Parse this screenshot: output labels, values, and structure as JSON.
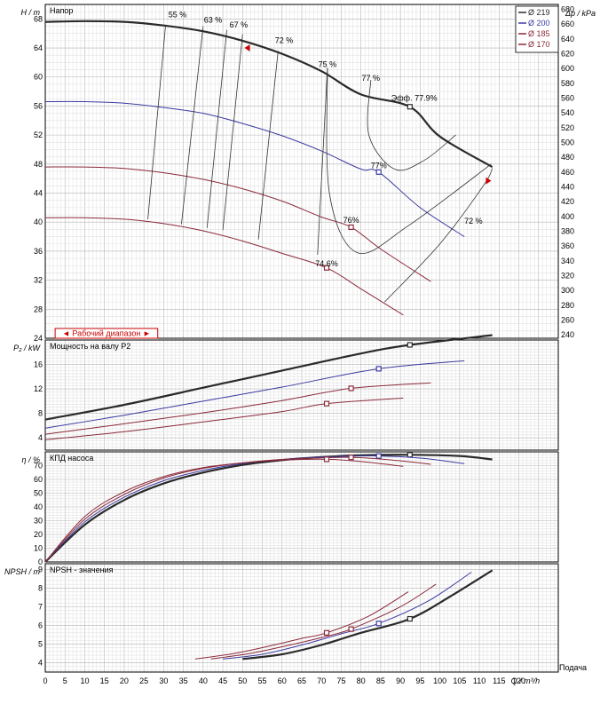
{
  "chart_data": [
    {
      "type": "line",
      "panel": "head",
      "title": "Напор",
      "ylabel": "H / m",
      "ylabel_right": "Δp / kPa",
      "xlim": [
        0,
        130
      ],
      "ylim": [
        24,
        70
      ],
      "yticks": [
        24,
        28,
        32,
        36,
        40,
        44,
        48,
        52,
        56,
        60,
        64,
        68
      ],
      "yticks_right": [
        240,
        260,
        280,
        300,
        320,
        340,
        360,
        380,
        400,
        420,
        440,
        460,
        480,
        500,
        520,
        540,
        560,
        580,
        600,
        620,
        640,
        660,
        680
      ],
      "legend_position": "top-right",
      "series": [
        {
          "name": "Ø 219",
          "color": "#2a2a2a",
          "width": 2.2,
          "x": [
            0,
            10,
            20,
            30,
            40,
            50,
            60,
            70,
            80,
            92.4,
            100,
            113.3
          ],
          "y": [
            67.6,
            67.7,
            67.6,
            67.1,
            66.3,
            65.0,
            63.2,
            60.8,
            57.6,
            55.9,
            51.8,
            47.6
          ]
        },
        {
          "name": "Ø 200",
          "color": "#3a3aa0",
          "width": 1,
          "x": [
            0,
            10,
            20,
            30,
            40,
            50,
            60,
            70,
            80,
            84.5,
            95,
            106.2
          ],
          "y": [
            56.6,
            56.6,
            56.4,
            55.8,
            55.0,
            53.6,
            51.9,
            49.8,
            47.3,
            46.9,
            42.0,
            38.0
          ]
        },
        {
          "name": "Ø 185",
          "color": "#8a2a3a",
          "width": 1,
          "x": [
            0,
            10,
            20,
            30,
            40,
            50,
            60,
            70,
            77.5,
            85,
            97.7
          ],
          "y": [
            47.6,
            47.6,
            47.4,
            46.8,
            45.9,
            44.6,
            42.9,
            40.7,
            39.3,
            36.3,
            31.8
          ]
        },
        {
          "name": "Ø 170",
          "color": "#8a2a3a",
          "width": 1,
          "x": [
            0,
            10,
            20,
            30,
            40,
            50,
            60,
            71.3,
            80,
            90.7
          ],
          "y": [
            40.6,
            40.6,
            40.4,
            39.8,
            38.8,
            37.4,
            35.7,
            33.7,
            30.8,
            27.2
          ]
        }
      ],
      "efficiency_labels": [
        {
          "text": "55 %",
          "x": 33.5,
          "y": 68.2
        },
        {
          "text": "63 %",
          "x": 42.5,
          "y": 67.5
        },
        {
          "text": "67 %",
          "x": 49.0,
          "y": 66.8
        },
        {
          "text": "72 %",
          "x": 60.5,
          "y": 64.7
        },
        {
          "text": "75 %",
          "x": 71.5,
          "y": 61.4
        },
        {
          "text": "77 %",
          "x": 82.5,
          "y": 59.5
        },
        {
          "text": "Эфф.  77.9%",
          "x": 93.5,
          "y": 56.7
        },
        {
          "text": "77%",
          "x": 84.5,
          "y": 47.4
        },
        {
          "text": "76%",
          "x": 77.5,
          "y": 39.9
        },
        {
          "text": "74.6%",
          "x": 71.3,
          "y": 33.9
        },
        {
          "text": "72 %",
          "x": 108.5,
          "y": 39.8
        }
      ],
      "operating_range_label": "◄ Рабочий диапазон ►",
      "operating_range": [
        2.5,
        28.5
      ]
    },
    {
      "type": "line",
      "panel": "power",
      "title": "Мощность на валу P2",
      "ylabel": "P₂ / kW",
      "xlim": [
        0,
        130
      ],
      "ylim": [
        2,
        20
      ],
      "yticks": [
        4,
        8,
        12,
        16
      ],
      "series": [
        {
          "name": "Ø 219",
          "color": "#2a2a2a",
          "width": 2.2,
          "x": [
            0,
            20,
            40,
            60,
            80,
            92.4,
            113.3
          ],
          "y": [
            7.0,
            9.4,
            12.2,
            15.0,
            17.8,
            19.2,
            20.8
          ]
        },
        {
          "name": "Ø 200",
          "color": "#3a3aa0",
          "width": 1,
          "x": [
            0,
            20,
            40,
            60,
            84.5,
            106.2
          ],
          "y": [
            5.6,
            7.7,
            10.0,
            12.3,
            15.3,
            16.6
          ]
        },
        {
          "name": "Ø 185",
          "color": "#8a2a3a",
          "width": 1,
          "x": [
            0,
            20,
            40,
            60,
            77.5,
            97.7
          ],
          "y": [
            4.6,
            6.3,
            8.1,
            10.1,
            12.1,
            13.0
          ]
        },
        {
          "name": "Ø 170",
          "color": "#8a2a3a",
          "width": 1,
          "x": [
            0,
            20,
            40,
            60,
            71.3,
            90.7
          ],
          "y": [
            3.7,
            5.0,
            6.6,
            8.3,
            9.6,
            10.5
          ]
        }
      ]
    },
    {
      "type": "line",
      "panel": "efficiency",
      "title": "КПД насоса",
      "ylabel": "η / %",
      "xlim": [
        0,
        130
      ],
      "ylim": [
        0,
        80
      ],
      "yticks": [
        0,
        10,
        20,
        30,
        40,
        50,
        60,
        70
      ],
      "series": [
        {
          "name": "Ø 219",
          "color": "#2a2a2a",
          "width": 2.2,
          "x": [
            0,
            10,
            20,
            30,
            40,
            50,
            60,
            70,
            80,
            92.4,
            105,
            113.3
          ],
          "y": [
            0,
            27,
            45,
            57,
            65,
            70.5,
            74,
            76.2,
            77.5,
            77.9,
            77.0,
            74.5
          ]
        },
        {
          "name": "Ø 200",
          "color": "#3a3aa0",
          "width": 1,
          "x": [
            0,
            10,
            20,
            30,
            40,
            50,
            60,
            70,
            84.5,
            95,
            106.2
          ],
          "y": [
            0,
            29,
            47,
            59,
            66.5,
            71.5,
            74.5,
            76.3,
            77,
            75.5,
            71.5
          ]
        },
        {
          "name": "Ø 185",
          "color": "#8a2a3a",
          "width": 1,
          "x": [
            0,
            10,
            20,
            30,
            40,
            50,
            60,
            77.5,
            90,
            97.7
          ],
          "y": [
            0,
            31,
            49,
            61,
            68,
            72,
            74.5,
            76,
            73.5,
            71
          ]
        },
        {
          "name": "Ø 170",
          "color": "#8a2a3a",
          "width": 1,
          "x": [
            0,
            10,
            20,
            30,
            40,
            50,
            60,
            71.3,
            80,
            90.7
          ],
          "y": [
            0,
            33,
            51,
            62,
            68.5,
            72,
            74,
            74.6,
            73,
            69.5
          ]
        }
      ]
    },
    {
      "type": "line",
      "panel": "npsh",
      "title": "NPSH - значения",
      "ylabel": "NPSH / m",
      "xlabel": "Q / m³/h",
      "xlabel_left": "Подача",
      "xlim": [
        0,
        130
      ],
      "ylim": [
        3.5,
        9.3
      ],
      "yticks": [
        4,
        5,
        6,
        7,
        8,
        9
      ],
      "xticks": [
        0,
        5,
        10,
        15,
        20,
        25,
        30,
        35,
        40,
        45,
        50,
        55,
        60,
        65,
        70,
        75,
        80,
        85,
        90,
        95,
        100,
        105,
        110,
        115,
        120
      ],
      "series": [
        {
          "name": "Ø 219",
          "color": "#2a2a2a",
          "width": 2.2,
          "x": [
            50,
            60,
            70,
            80,
            92.4,
            103,
            113.3
          ],
          "y": [
            4.2,
            4.45,
            4.95,
            5.6,
            6.35,
            7.6,
            8.95
          ]
        },
        {
          "name": "Ø 200",
          "color": "#3a3aa0",
          "width": 1,
          "x": [
            45,
            55,
            65,
            75,
            84.5,
            97,
            108
          ],
          "y": [
            4.2,
            4.45,
            4.95,
            5.55,
            6.1,
            7.3,
            8.85
          ]
        },
        {
          "name": "Ø 185",
          "color": "#8a2a3a",
          "width": 1,
          "x": [
            42,
            52,
            62,
            70,
            77.5,
            90,
            99
          ],
          "y": [
            4.2,
            4.5,
            4.95,
            5.35,
            5.8,
            7.0,
            8.2
          ]
        },
        {
          "name": "Ø 170",
          "color": "#8a2a3a",
          "width": 1,
          "x": [
            38,
            48,
            58,
            65,
            71.3,
            82,
            92
          ],
          "y": [
            4.2,
            4.5,
            4.95,
            5.3,
            5.6,
            6.5,
            7.8
          ]
        }
      ]
    }
  ],
  "legend": [
    {
      "label": "Ø 219",
      "color": "#2a2a2a"
    },
    {
      "label": "Ø 200",
      "color": "#3a3aa0"
    },
    {
      "label": "Ø 185",
      "color": "#8a2a3a"
    },
    {
      "label": "Ø 170",
      "color": "#8a2a3a"
    }
  ],
  "operating_points": {
    "Ø 219": 92.4,
    "Ø 200": 84.5,
    "Ø 185": 77.5,
    "Ø 170": 71.3
  }
}
